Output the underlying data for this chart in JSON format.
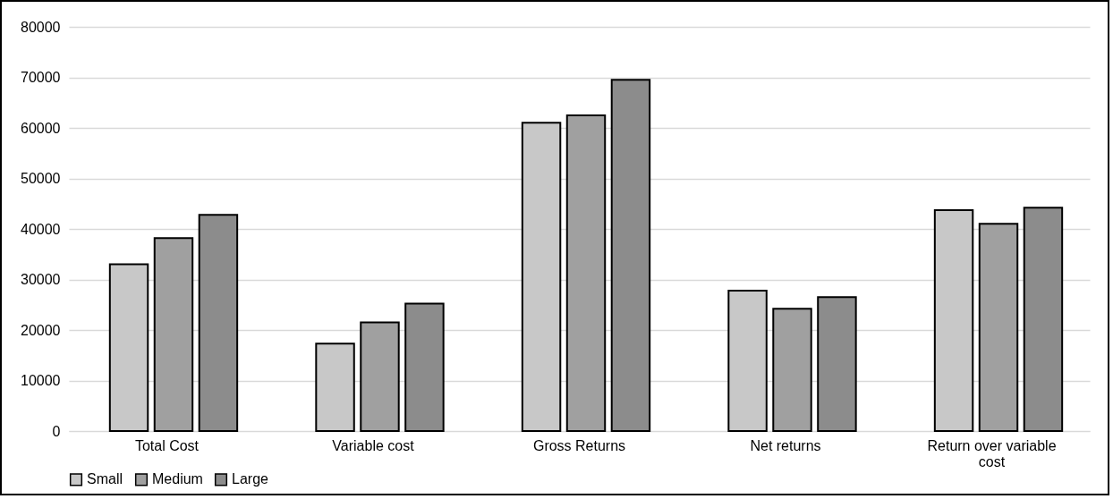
{
  "chart_data": {
    "type": "bar",
    "categories": [
      "Total Cost",
      "Variable cost",
      "Gross Returns",
      "Net returns",
      "Return over variable cost"
    ],
    "series": [
      {
        "name": "Small",
        "color": "#c8c8c8",
        "values": [
          33000,
          17300,
          61000,
          27800,
          43700
        ]
      },
      {
        "name": "Medium",
        "color": "#a0a0a0",
        "values": [
          38200,
          21500,
          62500,
          24200,
          41000
        ]
      },
      {
        "name": "Large",
        "color": "#8c8c8c",
        "values": [
          42800,
          25200,
          69500,
          26500,
          44200
        ]
      }
    ],
    "ylim": [
      0,
      80000
    ],
    "yticks": [
      0,
      10000,
      20000,
      30000,
      40000,
      50000,
      60000,
      70000,
      80000
    ],
    "grid": "y",
    "legend": "bottom"
  }
}
